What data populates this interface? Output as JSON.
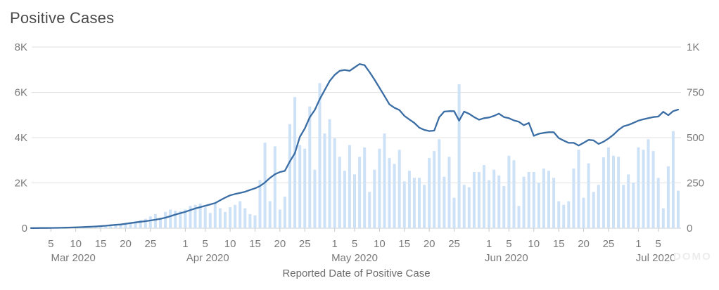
{
  "chart": {
    "watermark": "DOMO"
  },
  "chart_data": {
    "type": "combo_bar_line",
    "title": "Positive Cases",
    "xlabel": "Reported Date of Positive Case",
    "x_start": "Mar 1 2020",
    "x_end": "Jul 9 2020",
    "grid": "horizontal",
    "legend": "none",
    "left_axis": {
      "min": 0,
      "max": 8000,
      "ticks": [
        "8K",
        "6K",
        "4K",
        "2K",
        "0"
      ]
    },
    "right_axis": {
      "min": 0,
      "max": 1000,
      "ticks": [
        "1K",
        "750",
        "500",
        "250",
        "0"
      ]
    },
    "x_ticks": [
      {
        "label": "5",
        "day": 4
      },
      {
        "label": "10",
        "day": 9
      },
      {
        "label": "15",
        "day": 14
      },
      {
        "label": "20",
        "day": 19
      },
      {
        "label": "25",
        "day": 24
      },
      {
        "label": "1",
        "day": 31
      },
      {
        "label": "5",
        "day": 35
      },
      {
        "label": "10",
        "day": 40
      },
      {
        "label": "15",
        "day": 45
      },
      {
        "label": "20",
        "day": 50
      },
      {
        "label": "25",
        "day": 55
      },
      {
        "label": "1",
        "day": 61
      },
      {
        "label": "5",
        "day": 65
      },
      {
        "label": "10",
        "day": 70
      },
      {
        "label": "15",
        "day": 75
      },
      {
        "label": "20",
        "day": 80
      },
      {
        "label": "25",
        "day": 85
      },
      {
        "label": "1",
        "day": 92
      },
      {
        "label": "5",
        "day": 96
      },
      {
        "label": "10",
        "day": 101
      },
      {
        "label": "15",
        "day": 106
      },
      {
        "label": "20",
        "day": 111
      },
      {
        "label": "25",
        "day": 116
      },
      {
        "label": "1",
        "day": 122
      },
      {
        "label": "5",
        "day": 126
      }
    ],
    "month_labels": [
      {
        "label": "Mar 2020",
        "day": 8.5
      },
      {
        "label": "Apr 2020",
        "day": 35.5
      },
      {
        "label": "May 2020",
        "day": 65
      },
      {
        "label": "Jun 2020",
        "day": 95.5
      },
      {
        "label": "Jul 2020",
        "day": 125.5
      }
    ],
    "series": [
      {
        "name": "daily-positive-cases-bars",
        "type": "bar",
        "axis": "right",
        "color": "#cde2f6",
        "values": [
          0,
          0,
          0,
          0,
          0,
          0,
          0,
          1,
          2,
          2,
          3,
          4,
          5,
          6,
          8,
          10,
          13,
          19,
          22,
          26,
          32,
          39,
          45,
          52,
          65,
          78,
          58,
          90,
          103,
          97,
          93,
          103,
          123,
          129,
          136,
          116,
          84,
          136,
          110,
          90,
          116,
          129,
          149,
          110,
          78,
          71,
          265,
          472,
          149,
          452,
          103,
          174,
          575,
          724,
          459,
          439,
          672,
          323,
          801,
          523,
          601,
          497,
          394,
          317,
          459,
          297,
          394,
          446,
          200,
          323,
          439,
          523,
          388,
          355,
          433,
          258,
          317,
          278,
          278,
          239,
          388,
          426,
          491,
          284,
          394,
          168,
          795,
          239,
          226,
          310,
          310,
          349,
          265,
          323,
          291,
          233,
          400,
          375,
          123,
          284,
          310,
          310,
          252,
          329,
          317,
          278,
          149,
          129,
          149,
          329,
          433,
          168,
          358,
          200,
          239,
          391,
          446,
          400,
          394,
          239,
          297,
          252,
          446,
          433,
          491,
          426,
          278,
          110,
          342,
          536,
          207
        ]
      },
      {
        "name": "trend-line",
        "type": "line",
        "axis": "left",
        "color": "#3a6da4",
        "values": [
          5,
          6,
          8,
          10,
          13,
          16,
          20,
          25,
          31,
          38,
          46,
          55,
          65,
          78,
          92,
          110,
          130,
          150,
          165,
          195,
          225,
          255,
          285,
          310,
          340,
          375,
          415,
          465,
          530,
          600,
          665,
          722,
          800,
          870,
          930,
          990,
          1050,
          1110,
          1230,
          1350,
          1450,
          1510,
          1560,
          1610,
          1690,
          1760,
          1860,
          2020,
          2220,
          2380,
          2480,
          2530,
          2950,
          3310,
          4030,
          4400,
          4900,
          5220,
          5700,
          6100,
          6500,
          6770,
          6950,
          6990,
          6950,
          7100,
          7250,
          7200,
          6900,
          6560,
          6200,
          5840,
          5470,
          5320,
          5220,
          4960,
          4800,
          4650,
          4440,
          4340,
          4290,
          4310,
          4900,
          5150,
          5170,
          5170,
          4750,
          5150,
          5050,
          4910,
          4790,
          4860,
          4890,
          4960,
          5060,
          4910,
          4860,
          4760,
          4700,
          4550,
          4650,
          4080,
          4170,
          4210,
          4240,
          4240,
          3980,
          3870,
          3770,
          3770,
          3650,
          3770,
          3900,
          3880,
          3720,
          3820,
          3960,
          4130,
          4340,
          4500,
          4560,
          4650,
          4750,
          4810,
          4860,
          4910,
          4930,
          5140,
          4990,
          5170,
          5240
        ]
      }
    ],
    "colors": {
      "bar": "#cde2f6",
      "line": "#3a6da4",
      "grid": "#e2e2e2",
      "baseline": "#cfcfcf",
      "tick": "#c9c9c9",
      "axis_text": "#7a7a7a",
      "title_text": "#4a4a4a"
    }
  }
}
